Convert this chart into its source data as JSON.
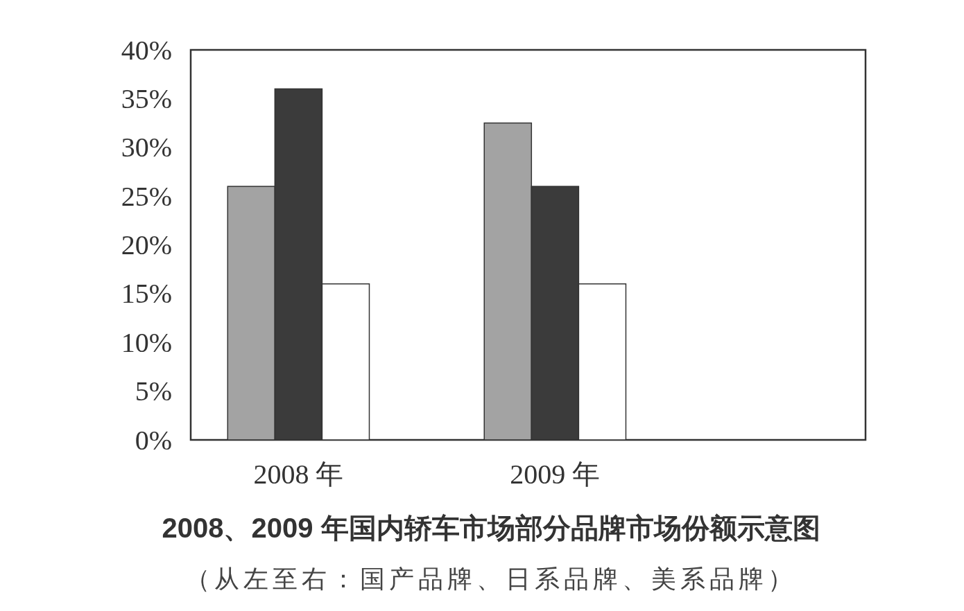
{
  "chart_data": {
    "type": "bar",
    "title": "2008、2009 年国内轿车市场部分品牌市场份额示意图",
    "subtitle": "（从左至右：国产品牌、日系品牌、美系品牌）",
    "categories": [
      "2008 年",
      "2009 年"
    ],
    "series": [
      {
        "color": "#a3a3a3",
        "values": [
          26,
          32.5
        ]
      },
      {
        "color": "#3b3b3b",
        "values": [
          36,
          26
        ]
      },
      {
        "color": "#ffffff",
        "values": [
          16,
          16
        ]
      }
    ],
    "ylim": [
      0,
      40
    ],
    "yticks": [
      {
        "value": 0,
        "label": "0%"
      },
      {
        "value": 5,
        "label": "5%"
      },
      {
        "value": 10,
        "label": "10%"
      },
      {
        "value": 15,
        "label": "15%"
      },
      {
        "value": 20,
        "label": "20%"
      },
      {
        "value": 25,
        "label": "25%"
      },
      {
        "value": 30,
        "label": "30%"
      },
      {
        "value": 35,
        "label": "35%"
      },
      {
        "value": 40,
        "label": "40%"
      }
    ]
  }
}
